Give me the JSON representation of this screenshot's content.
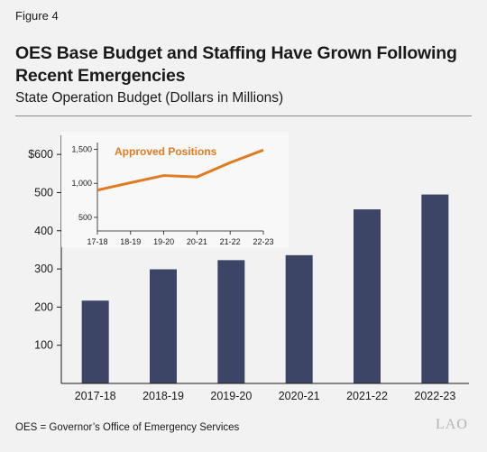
{
  "figure_label": "Figure 4",
  "title": "OES Base Budget and Staffing Have Grown Following Recent Emergencies",
  "subtitle": "State Operation Budget (Dollars in Millions)",
  "footnote": "OES = Governor’s Office of Emergency Services",
  "logo_text": "LAO",
  "colors": {
    "bar": "#3d4566",
    "line": "#e07b22",
    "inset_bg": "#f8f8f8",
    "background": "#f2f2f2"
  },
  "chart_data": [
    {
      "type": "bar",
      "categories": [
        "2017-18",
        "2018-19",
        "2019-20",
        "2020-21",
        "2021-22",
        "2022-23"
      ],
      "values": [
        217,
        299,
        323,
        336,
        456,
        495
      ],
      "ylim": [
        0,
        650
      ],
      "yticks": [
        100,
        200,
        300,
        400,
        500,
        600
      ],
      "ytick_labels": [
        "100",
        "200",
        "300",
        "400",
        "500",
        "$600"
      ],
      "grid": false
    },
    {
      "type": "line",
      "title": "Approved Positions",
      "x": [
        "17-18",
        "18-19",
        "19-20",
        "20-21",
        "21-22",
        "22-23"
      ],
      "values": [
        900,
        1010,
        1115,
        1095,
        1305,
        1490
      ],
      "ylim": [
        300,
        1600
      ],
      "yticks": [
        500,
        1000,
        1500
      ],
      "ytick_labels": [
        "500",
        "1,000",
        "1,500"
      ],
      "grid": false
    }
  ]
}
